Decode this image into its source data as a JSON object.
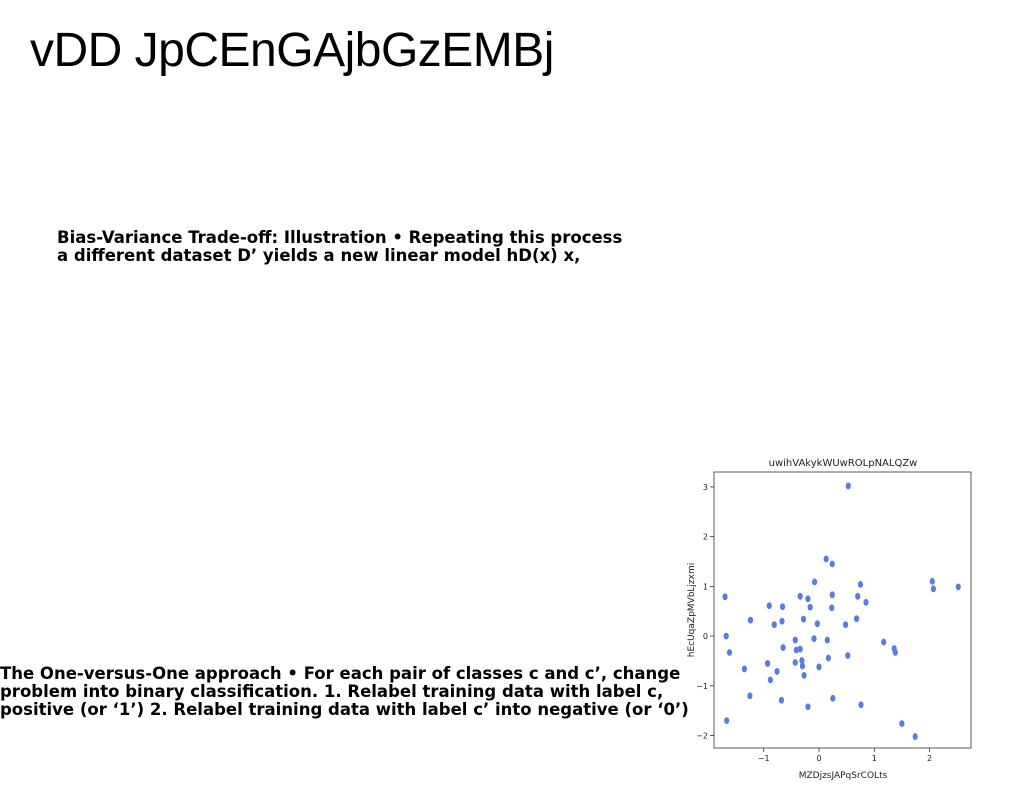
{
  "slide": {
    "title": "vDD JpCEnGAjbGzEMBj",
    "paragraph1": {
      "lines": [
        "Bias-Variance Trade-off: Illustration • Repeating this process",
        "a different dataset D’ yields a new linear model hD(x) x,"
      ]
    },
    "paragraph2": {
      "lines": [
        "The One-versus-One approach • For each pair of classes c and c’, change",
        "problem into binary classification. 1. Relabel training data with label c,",
        "positive (or ‘1’) 2. Relabel training data with label c’ into negative (or ‘0’)"
      ]
    }
  },
  "chart_data": {
    "type": "scatter",
    "title": "uwihVAkykWUwROLpNALQZw",
    "xlabel": "MZDjzsJAPqSrCOLts",
    "ylabel": "hEcUqaZpMVbLjzxmi",
    "xlim": [
      -1.9,
      2.75
    ],
    "ylim": [
      -2.25,
      3.3
    ],
    "xticks": [
      -1,
      0,
      1,
      2
    ],
    "yticks": [
      -2,
      -1,
      0,
      1,
      2,
      3
    ],
    "grid": false,
    "color": "#5b7be0",
    "points": [
      [
        0.53,
        3.02
      ],
      [
        0.13,
        1.55
      ],
      [
        0.24,
        1.45
      ],
      [
        -0.08,
        1.09
      ],
      [
        0.75,
        1.04
      ],
      [
        2.05,
        1.1
      ],
      [
        2.07,
        0.95
      ],
      [
        2.52,
        0.99
      ],
      [
        -1.7,
        0.79
      ],
      [
        -0.34,
        0.8
      ],
      [
        -0.2,
        0.75
      ],
      [
        0.24,
        0.83
      ],
      [
        0.7,
        0.8
      ],
      [
        0.85,
        0.68
      ],
      [
        -0.9,
        0.61
      ],
      [
        -0.66,
        0.59
      ],
      [
        -0.16,
        0.58
      ],
      [
        0.23,
        0.57
      ],
      [
        -1.24,
        0.32
      ],
      [
        -0.67,
        0.3
      ],
      [
        -0.81,
        0.23
      ],
      [
        -0.28,
        0.34
      ],
      [
        0.68,
        0.35
      ],
      [
        0.48,
        0.23
      ],
      [
        -0.03,
        0.25
      ],
      [
        -1.68,
        0.0
      ],
      [
        -0.43,
        -0.08
      ],
      [
        -0.09,
        -0.05
      ],
      [
        0.15,
        -0.08
      ],
      [
        1.17,
        -0.12
      ],
      [
        -0.65,
        -0.23
      ],
      [
        -0.41,
        -0.28
      ],
      [
        -0.34,
        -0.26
      ],
      [
        1.36,
        -0.25
      ],
      [
        1.38,
        -0.33
      ],
      [
        -1.62,
        -0.33
      ],
      [
        0.52,
        -0.39
      ],
      [
        0.17,
        -0.44
      ],
      [
        -0.31,
        -0.49
      ],
      [
        -0.43,
        -0.53
      ],
      [
        -0.93,
        -0.55
      ],
      [
        -0.3,
        -0.6
      ],
      [
        0.0,
        -0.62
      ],
      [
        -1.35,
        -0.66
      ],
      [
        -0.76,
        -0.71
      ],
      [
        -0.27,
        -0.79
      ],
      [
        -0.88,
        -0.88
      ],
      [
        -1.25,
        -1.2
      ],
      [
        0.25,
        -1.25
      ],
      [
        -0.68,
        -1.29
      ],
      [
        0.76,
        -1.38
      ],
      [
        -0.2,
        -1.42
      ],
      [
        -1.67,
        -1.7
      ],
      [
        1.5,
        -1.76
      ],
      [
        1.74,
        -2.02
      ]
    ]
  }
}
